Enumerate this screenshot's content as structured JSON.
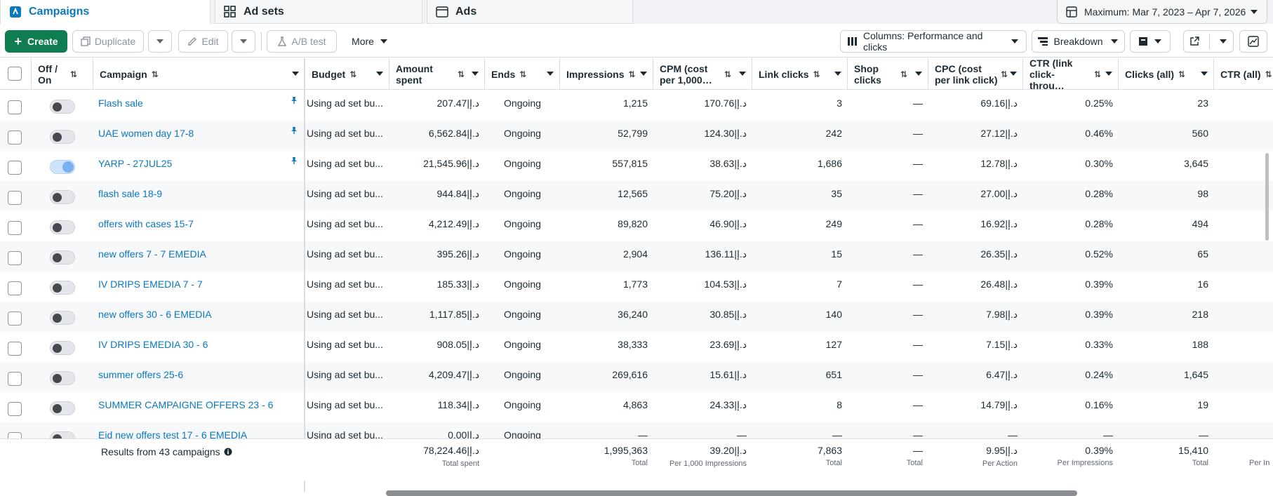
{
  "tabs": [
    {
      "label": "Campaigns",
      "icon": "campaigns-icon"
    },
    {
      "label": "Ad sets",
      "icon": "grid-icon"
    },
    {
      "label": "Ads",
      "icon": "ad-icon"
    }
  ],
  "date_range": "Maximum: Mar 7, 2023 – Apr 7, 2026",
  "toolbar": {
    "create": "Create",
    "duplicate": "Duplicate",
    "edit": "Edit",
    "ab_test": "A/B test",
    "more": "More",
    "columns": "Columns: Performance and clicks",
    "breakdown": "Breakdown"
  },
  "columns": {
    "off_on": "Off / On",
    "campaign": "Campaign",
    "budget": "Budget",
    "amount_spent": "Amount spent",
    "ends": "Ends",
    "impressions": "Impressions",
    "cpm": "CPM (cost per 1,000…",
    "link_clicks": "Link clicks",
    "shop_clicks": "Shop clicks",
    "cpc": "CPC (cost per link click)",
    "ctr": "CTR (link click-throu…",
    "clicks_all": "Clicks (all)",
    "ctr_all": "CTR (all)"
  },
  "rows": [
    {
      "name": "Flash sale",
      "pinned": true,
      "on": false,
      "budget": "Using ad set bu...",
      "spent": "207.47|د.إ",
      "ends": "Ongoing",
      "impressions": "1,215",
      "cpm": "170.76|د.إ",
      "link_clicks": "3",
      "shop_clicks": "—",
      "cpc": "69.16|د.إ",
      "ctr": "0.25%",
      "clicks_all": "23"
    },
    {
      "name": "UAE women day 17-8",
      "pinned": true,
      "on": false,
      "budget": "Using ad set bu...",
      "spent": "6,562.84|د.إ",
      "ends": "Ongoing",
      "impressions": "52,799",
      "cpm": "124.30|د.إ",
      "link_clicks": "242",
      "shop_clicks": "—",
      "cpc": "27.12|د.إ",
      "ctr": "0.46%",
      "clicks_all": "560"
    },
    {
      "name": "YARP - 27JUL25",
      "pinned": true,
      "on": true,
      "budget": "Using ad set bu...",
      "spent": "21,545.96|د.إ",
      "ends": "Ongoing",
      "impressions": "557,815",
      "cpm": "38.63|د.إ",
      "link_clicks": "1,686",
      "shop_clicks": "—",
      "cpc": "12.78|د.إ",
      "ctr": "0.30%",
      "clicks_all": "3,645"
    },
    {
      "name": "flash sale 18-9",
      "pinned": false,
      "on": false,
      "budget": "Using ad set bu...",
      "spent": "944.84|د.إ",
      "ends": "Ongoing",
      "impressions": "12,565",
      "cpm": "75.20|د.إ",
      "link_clicks": "35",
      "shop_clicks": "—",
      "cpc": "27.00|د.إ",
      "ctr": "0.28%",
      "clicks_all": "98"
    },
    {
      "name": "offers with cases 15-7",
      "pinned": false,
      "on": false,
      "budget": "Using ad set bu...",
      "spent": "4,212.49|د.إ",
      "ends": "Ongoing",
      "impressions": "89,820",
      "cpm": "46.90|د.إ",
      "link_clicks": "249",
      "shop_clicks": "—",
      "cpc": "16.92|د.إ",
      "ctr": "0.28%",
      "clicks_all": "494"
    },
    {
      "name": "new offers 7 - 7 EMEDIA",
      "pinned": false,
      "on": false,
      "budget": "Using ad set bu...",
      "spent": "395.26|د.إ",
      "ends": "Ongoing",
      "impressions": "2,904",
      "cpm": "136.11|د.إ",
      "link_clicks": "15",
      "shop_clicks": "—",
      "cpc": "26.35|د.إ",
      "ctr": "0.52%",
      "clicks_all": "65"
    },
    {
      "name": "IV DRIPS EMEDIA 7 - 7",
      "pinned": false,
      "on": false,
      "budget": "Using ad set bu...",
      "spent": "185.33|د.إ",
      "ends": "Ongoing",
      "impressions": "1,773",
      "cpm": "104.53|د.إ",
      "link_clicks": "7",
      "shop_clicks": "—",
      "cpc": "26.48|د.إ",
      "ctr": "0.39%",
      "clicks_all": "16"
    },
    {
      "name": "new offers 30 - 6 EMEDIA",
      "pinned": false,
      "on": false,
      "budget": "Using ad set bu...",
      "spent": "1,117.85|د.إ",
      "ends": "Ongoing",
      "impressions": "36,240",
      "cpm": "30.85|د.إ",
      "link_clicks": "140",
      "shop_clicks": "—",
      "cpc": "7.98|د.إ",
      "ctr": "0.39%",
      "clicks_all": "218"
    },
    {
      "name": "IV DRIPS EMEDIA 30 - 6",
      "pinned": false,
      "on": false,
      "budget": "Using ad set bu...",
      "spent": "908.05|د.إ",
      "ends": "Ongoing",
      "impressions": "38,333",
      "cpm": "23.69|د.إ",
      "link_clicks": "127",
      "shop_clicks": "—",
      "cpc": "7.15|د.إ",
      "ctr": "0.33%",
      "clicks_all": "188"
    },
    {
      "name": "summer offers 25-6",
      "pinned": false,
      "on": false,
      "budget": "Using ad set bu...",
      "spent": "4,209.47|د.إ",
      "ends": "Ongoing",
      "impressions": "269,616",
      "cpm": "15.61|د.إ",
      "link_clicks": "651",
      "shop_clicks": "—",
      "cpc": "6.47|د.إ",
      "ctr": "0.24%",
      "clicks_all": "1,645"
    },
    {
      "name": "SUMMER CAMPAIGNE OFFERS 23 - 6",
      "pinned": false,
      "on": false,
      "budget": "Using ad set bu...",
      "spent": "118.34|د.إ",
      "ends": "Ongoing",
      "impressions": "4,863",
      "cpm": "24.33|د.إ",
      "link_clicks": "8",
      "shop_clicks": "—",
      "cpc": "14.79|د.إ",
      "ctr": "0.16%",
      "clicks_all": "19"
    },
    {
      "name": "Eid new offers test 17 - 6 EMEDIA",
      "pinned": false,
      "on": false,
      "budget": "Using ad set bu...",
      "spent": "0.00|د.إ",
      "ends": "Ongoing",
      "impressions": "—",
      "cpm": "—",
      "link_clicks": "—",
      "shop_clicks": "—",
      "cpc": "—",
      "ctr": "—",
      "clicks_all": "—"
    }
  ],
  "footer": {
    "results": "Results from 43 campaigns",
    "spent": "78,224.46|د.إ",
    "spent_sub": "Total spent",
    "impressions": "1,995,363",
    "impressions_sub": "Total",
    "cpm": "39.20|د.إ",
    "cpm_sub": "Per 1,000 Impressions",
    "link_clicks": "7,863",
    "link_clicks_sub": "Total",
    "shop_clicks": "—",
    "shop_clicks_sub": "Total",
    "cpc": "9.95|د.إ",
    "cpc_sub": "Per Action",
    "ctr": "0.39%",
    "ctr_sub": "Per Impressions",
    "clicks_all": "15,410",
    "clicks_all_sub": "Total",
    "ctr_all_sub": "Per In"
  },
  "colors": {
    "accent": "#0a78be",
    "create": "#0f7d4f"
  }
}
